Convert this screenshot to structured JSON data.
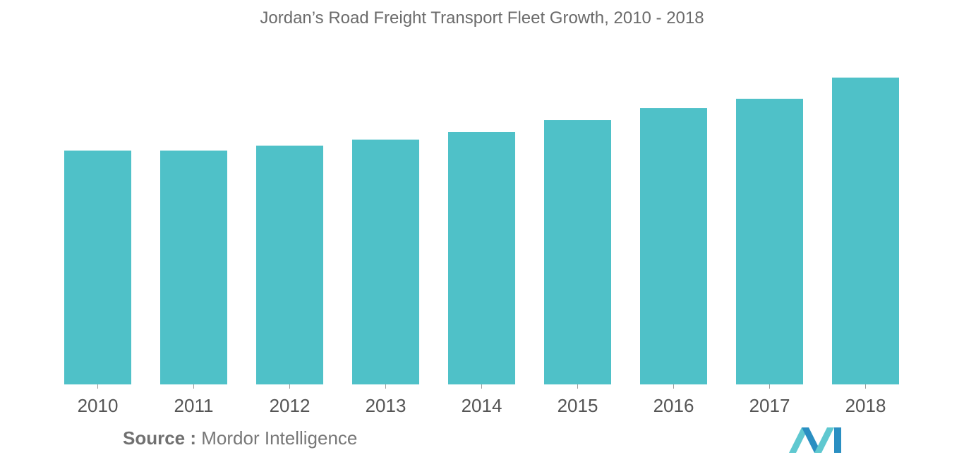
{
  "chart_data": {
    "type": "bar",
    "title": "Jordan’s Road Freight Transport Fleet Growth, 2010 - 2018",
    "categories": [
      "2010",
      "2011",
      "2012",
      "2013",
      "2014",
      "2015",
      "2016",
      "2017",
      "2018"
    ],
    "values": [
      76.2,
      76.2,
      77.8,
      79.8,
      82.3,
      86.2,
      90.1,
      93.1,
      100
    ],
    "ylim": [
      0,
      100
    ],
    "xlabel": "",
    "ylabel": "",
    "grid": false,
    "legend": "none",
    "bar_color": "#4fc1c8"
  },
  "source": {
    "label": "Source :",
    "text": "Mordor Intelligence"
  },
  "logo": {
    "icon": "mordor-intelligence-logo-icon",
    "color_light": "#5fc8d0",
    "color_dark": "#2a8fc2"
  }
}
